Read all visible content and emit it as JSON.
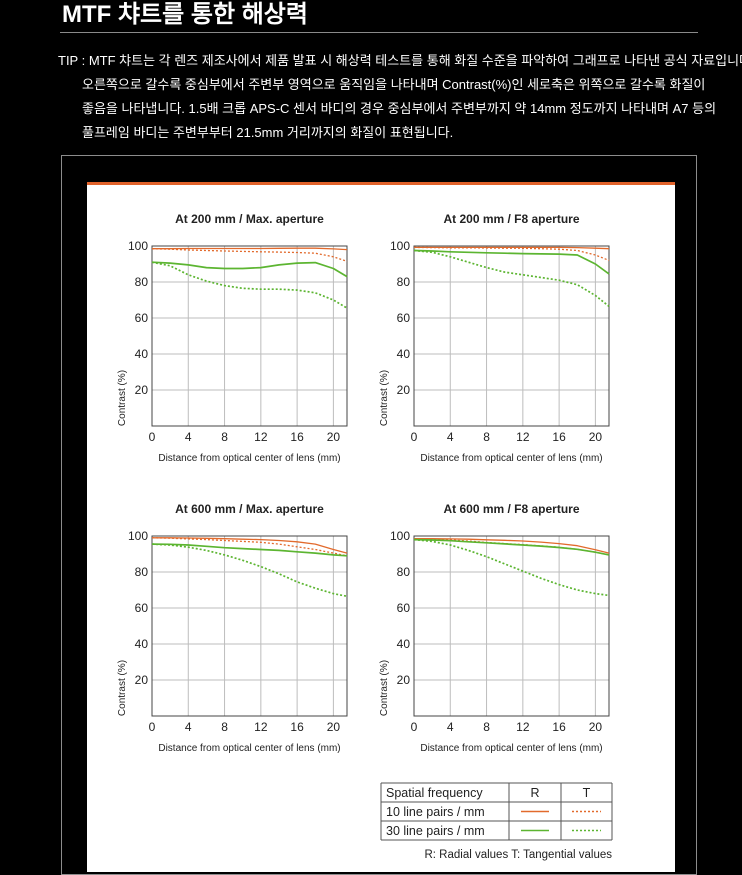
{
  "header": {
    "title": "MTF 챠트를 통한 해상력",
    "tip_line1": "TIP : MTF 챠트는 각 렌즈 제조사에서 제품 발표 시 해상력 테스트를 통해 화질 수준을 파악하여 그래프로 나타낸 공식 자료입니다.",
    "tip_rest": "오른쪽으로 갈수록 중심부에서 주변부 영역으로 움직임을 나타내며 Contrast(%)인 세로축은 위쪽으로 갈수록 화질이 좋음을 나타냅니다. 1.5배 크롭 APS-C 센서 바디의 경우 중심부에서 주변부까지 약 14mm 정도까지 나타내며 A7 등의 풀프레임 바디는 주변부부터 21.5mm 거리까지의 화질이 표현됩니다."
  },
  "colors": {
    "orange": "#e26a2c",
    "green": "#5cb531",
    "accent_bar": "#e1622a"
  },
  "legend": {
    "header": [
      "Spatial frequency",
      "R",
      "T"
    ],
    "rows": [
      "10 line pairs / mm",
      "30 line pairs / mm"
    ],
    "note": "R: Radial values  T: Tangential values"
  },
  "chart_data": [
    {
      "type": "line",
      "title": "At 200 mm / Max. aperture",
      "xlabel": "Distance from optical center of lens (mm)",
      "ylabel": "Contrast (%)",
      "xlim": [
        0,
        21.5
      ],
      "ylim": [
        0,
        100
      ],
      "xticks": [
        0,
        4,
        8,
        12,
        16,
        20
      ],
      "yticks": [
        20,
        40,
        60,
        80,
        100
      ],
      "grid": true,
      "x": [
        0,
        2,
        4,
        6,
        8,
        10,
        12,
        14,
        16,
        18,
        20,
        21.5
      ],
      "series": [
        {
          "name": "10 line pairs / mm R",
          "values": [
            98.5,
            98.5,
            98.6,
            98.6,
            98.6,
            98.6,
            98.6,
            98.7,
            98.8,
            98.8,
            98.4,
            98.0
          ]
        },
        {
          "name": "10 line pairs / mm T",
          "values": [
            98.5,
            98.2,
            97.8,
            97.5,
            97.2,
            97.0,
            96.8,
            96.6,
            96.4,
            96.0,
            94.0,
            91.5
          ]
        },
        {
          "name": "30 line pairs / mm R",
          "values": [
            91.0,
            90.5,
            89.5,
            88.0,
            87.5,
            87.5,
            88.0,
            89.5,
            90.5,
            90.8,
            87.5,
            83.0
          ]
        },
        {
          "name": "30 line pairs / mm T",
          "values": [
            91.0,
            89.0,
            84.0,
            80.5,
            78.0,
            76.5,
            76.0,
            76.0,
            75.5,
            74.0,
            70.0,
            65.5
          ]
        }
      ]
    },
    {
      "type": "line",
      "title": "At 200 mm / F8 aperture",
      "xlabel": "Distance from optical center of lens (mm)",
      "ylabel": "Contrast (%)",
      "xlim": [
        0,
        21.5
      ],
      "ylim": [
        0,
        100
      ],
      "xticks": [
        0,
        4,
        8,
        12,
        16,
        20
      ],
      "yticks": [
        20,
        40,
        60,
        80,
        100
      ],
      "grid": true,
      "x": [
        0,
        2,
        4,
        6,
        8,
        10,
        12,
        14,
        16,
        18,
        20,
        21.5
      ],
      "series": [
        {
          "name": "10 line pairs / mm R",
          "values": [
            99.2,
            99.2,
            99.2,
            99.2,
            99.2,
            99.2,
            99.2,
            99.2,
            99.2,
            99.1,
            98.8,
            98.5
          ]
        },
        {
          "name": "10 line pairs / mm T",
          "values": [
            99.2,
            99.1,
            99.0,
            99.0,
            98.9,
            98.8,
            98.7,
            98.5,
            98.2,
            97.5,
            95.0,
            92.0
          ]
        },
        {
          "name": "30 line pairs / mm R",
          "values": [
            97.5,
            97.2,
            96.8,
            96.5,
            96.2,
            96.0,
            95.8,
            95.6,
            95.5,
            95.0,
            90.0,
            84.5
          ]
        },
        {
          "name": "30 line pairs / mm T",
          "values": [
            97.5,
            96.5,
            94.0,
            91.0,
            88.0,
            85.5,
            84.0,
            82.5,
            81.0,
            78.5,
            72.5,
            66.5
          ]
        }
      ]
    },
    {
      "type": "line",
      "title": "At 600 mm / Max. aperture",
      "xlabel": "Distance from optical center of lens (mm)",
      "ylabel": "Contrast (%)",
      "xlim": [
        0,
        21.5
      ],
      "ylim": [
        0,
        100
      ],
      "xticks": [
        0,
        4,
        8,
        12,
        16,
        20
      ],
      "yticks": [
        20,
        40,
        60,
        80,
        100
      ],
      "grid": true,
      "x": [
        0,
        2,
        4,
        6,
        8,
        10,
        12,
        14,
        16,
        18,
        20,
        21.5
      ],
      "series": [
        {
          "name": "10 line pairs / mm R",
          "values": [
            99.0,
            99.0,
            98.9,
            98.7,
            98.5,
            98.2,
            98.0,
            97.5,
            96.8,
            95.5,
            92.5,
            90.5
          ]
        },
        {
          "name": "10 line pairs / mm T",
          "values": [
            99.0,
            98.8,
            98.4,
            98.0,
            97.5,
            97.0,
            96.5,
            95.5,
            94.0,
            92.5,
            90.5,
            89.0
          ]
        },
        {
          "name": "30 line pairs / mm R",
          "values": [
            95.5,
            95.4,
            95.0,
            94.3,
            93.5,
            93.0,
            92.5,
            92.0,
            91.2,
            90.5,
            89.5,
            89.0
          ]
        },
        {
          "name": "30 line pairs / mm T",
          "values": [
            95.5,
            95.0,
            93.8,
            92.0,
            89.5,
            86.5,
            83.0,
            79.0,
            74.5,
            71.0,
            68.0,
            66.5
          ]
        }
      ]
    },
    {
      "type": "line",
      "title": "At 600 mm / F8 aperture",
      "xlabel": "Distance from optical center of lens (mm)",
      "ylabel": "Contrast (%)",
      "xlim": [
        0,
        21.5
      ],
      "ylim": [
        0,
        100
      ],
      "xticks": [
        0,
        4,
        8,
        12,
        16,
        20
      ],
      "yticks": [
        20,
        40,
        60,
        80,
        100
      ],
      "grid": true,
      "x": [
        0,
        2,
        4,
        6,
        8,
        10,
        12,
        14,
        16,
        18,
        20,
        21.5
      ],
      "series": [
        {
          "name": "10 line pairs / mm R",
          "values": [
            98.5,
            98.5,
            98.4,
            98.2,
            97.9,
            97.6,
            97.2,
            96.6,
            95.8,
            94.6,
            92.4,
            90.5
          ]
        },
        {
          "name": "10 line pairs / mm T",
          "values": [
            98.5,
            98.3,
            97.8,
            97.2,
            96.4,
            95.8,
            95.2,
            94.5,
            93.8,
            92.6,
            91.0,
            89.5
          ]
        },
        {
          "name": "30 line pairs / mm R",
          "values": [
            98.0,
            97.8,
            97.4,
            96.8,
            96.2,
            95.6,
            95.0,
            94.4,
            93.6,
            92.6,
            91.0,
            89.5
          ]
        },
        {
          "name": "30 line pairs / mm T",
          "values": [
            98.0,
            97.0,
            95.0,
            92.0,
            88.5,
            84.5,
            80.5,
            76.5,
            73.0,
            70.0,
            68.0,
            67.0
          ]
        }
      ]
    }
  ]
}
